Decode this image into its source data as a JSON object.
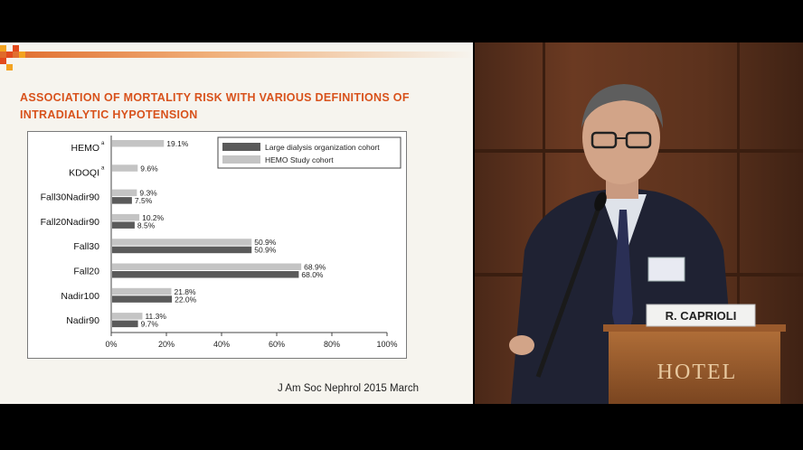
{
  "slide": {
    "title": "ASSOCIATION OF MORTALITY RISK WITH VARIOUS DEFINITIONS OF INTRADIALYTIC HYPOTENSION",
    "citation": "J Am Soc Nephrol 2015 March"
  },
  "chart_data": {
    "type": "bar",
    "orientation": "horizontal",
    "categories": [
      "HEMO",
      "KDOQI",
      "Fall30Nadir90",
      "Fall20Nadir90",
      "Fall30",
      "Fall20",
      "Nadir100",
      "Nadir90"
    ],
    "category_superscripts": [
      "a",
      "a",
      "",
      "",
      "",
      "",
      "",
      ""
    ],
    "series": [
      {
        "name": "HEMO Study cohort",
        "color": "#c4c4c4",
        "values": [
          19.1,
          9.6,
          9.3,
          10.2,
          50.9,
          68.9,
          21.8,
          11.3
        ],
        "labels": [
          "19.1%",
          "9.6%",
          "9.3%",
          "10.2%",
          "50.9%",
          "68.9%",
          "21.8%",
          "11.3%"
        ]
      },
      {
        "name": "Large dialysis organization cohort",
        "color": "#5a5a5a",
        "values": [
          null,
          null,
          7.5,
          8.5,
          50.9,
          68.0,
          22.0,
          9.7
        ],
        "labels": [
          "",
          "",
          "7.5%",
          "8.5%",
          "50.9%",
          "68.0%",
          "22.0%",
          "9.7%"
        ]
      }
    ],
    "legend_order": [
      "Large dialysis organization cohort",
      "HEMO Study cohort"
    ],
    "legend_position": "top-right",
    "xticks": [
      "0%",
      "20%",
      "40%",
      "60%",
      "80%",
      "100%"
    ],
    "xlim": [
      0,
      100
    ],
    "grid": false
  },
  "speaker": {
    "nameplate": "R. CAPRIOLI",
    "podium_text": "HOTEL"
  }
}
